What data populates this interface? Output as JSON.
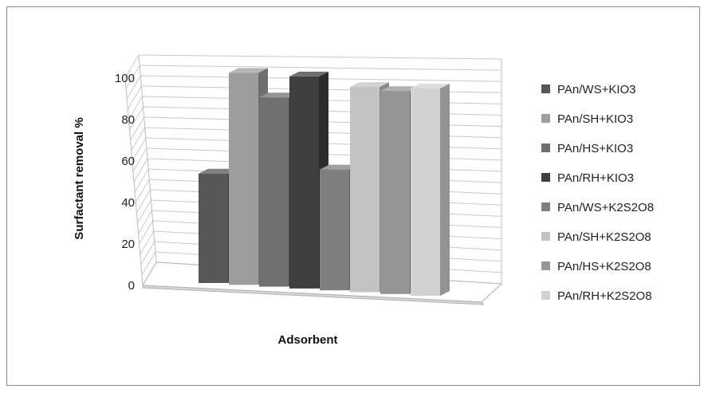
{
  "chart_data": {
    "type": "bar",
    "title": "",
    "xlabel": "Adsorbent",
    "ylabel": "Surfactant removal %",
    "ylim": [
      0,
      100
    ],
    "yticks": [
      0,
      20,
      40,
      60,
      80,
      100
    ],
    "grid": true,
    "legend_position": "right",
    "series": [
      {
        "name": "PAn/WS+KIO3",
        "value": 48,
        "color": "#575757"
      },
      {
        "name": "PAn/SH+KIO3",
        "value": 93,
        "color": "#9d9d9d"
      },
      {
        "name": "PAn/HS+KIO3",
        "value": 83,
        "color": "#707070"
      },
      {
        "name": "PAn/RH+KIO3",
        "value": 93,
        "color": "#3f3f3f"
      },
      {
        "name": "PAn/WS+K2S2O8",
        "value": 53,
        "color": "#7f7f7f"
      },
      {
        "name": "PAn/SH+K2S2O8",
        "value": 90,
        "color": "#c3c3c3"
      },
      {
        "name": "PAn/HS+K2S2O8",
        "value": 89,
        "color": "#959595"
      },
      {
        "name": "PAn/RH+K2S2O8",
        "value": 91,
        "color": "#d2d2d2"
      }
    ]
  }
}
